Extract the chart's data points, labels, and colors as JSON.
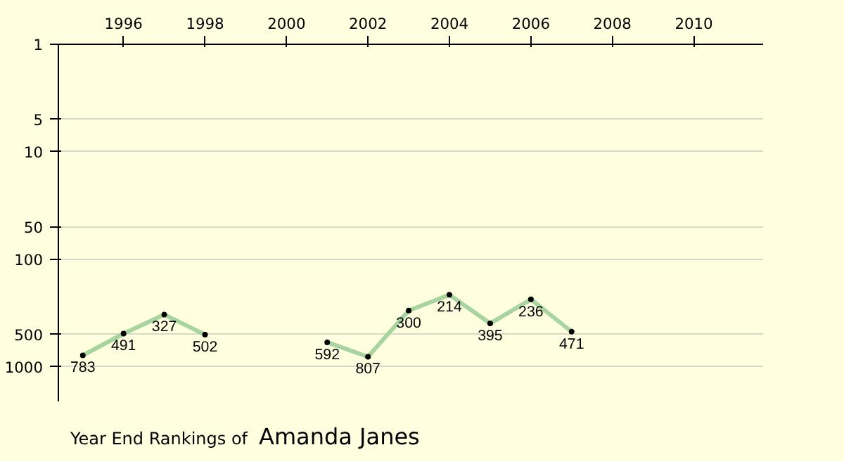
{
  "chart_data": {
    "type": "line",
    "title": "Year End Rankings of",
    "subtitle": "Amanda Janes",
    "x": [
      1995,
      1996,
      1997,
      1998,
      1999,
      2000,
      2001,
      2002,
      2003,
      2004,
      2005,
      2006,
      2007
    ],
    "series": [
      {
        "color": "#a8d4a0",
        "values": [
          783,
          491,
          327,
          502,
          null,
          null,
          592,
          807,
          300,
          214,
          395,
          236,
          471
        ]
      }
    ],
    "data_labels": true,
    "log": "y",
    "ylim": [
      2100,
      1
    ],
    "yticks": [
      1,
      5,
      10,
      50,
      100,
      500,
      1000
    ],
    "xlim": [
      1994.4,
      2011.7
    ],
    "xticks": [
      1996,
      1998,
      2000,
      2002,
      2004,
      2006,
      2008,
      2010
    ],
    "grid": "y",
    "marker": "circle"
  }
}
